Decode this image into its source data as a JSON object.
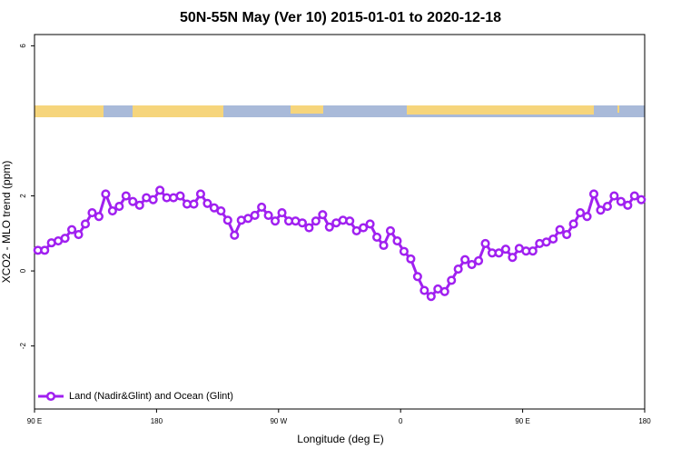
{
  "chart_data": {
    "type": "line",
    "title": "50N-55N May (Ver 10)   2015-01-01 to 2020-12-18",
    "xlabel": "Longitude (deg E)",
    "ylabel": "XCO2 - MLO trend (ppm)",
    "xlim": [
      90,
      540
    ],
    "ylim": [
      -3.68,
      6.3
    ],
    "xticks": [
      {
        "value": 90,
        "label": "90 E"
      },
      180,
      {
        "value": 270,
        "label": "90 W"
      },
      {
        "value": 360,
        "label": "0"
      },
      {
        "value": 450,
        "label": "90 E"
      },
      {
        "value": 540,
        "label": "180"
      }
    ],
    "yticks": [
      -2,
      0,
      2,
      6
    ],
    "legend": "bottom-left",
    "x": [
      92.5,
      97.5,
      102.5,
      107.5,
      112.5,
      117.5,
      122.5,
      127.5,
      132.5,
      137.5,
      142.5,
      147.5,
      152.5,
      157.5,
      162.5,
      167.5,
      172.5,
      177.5,
      182.5,
      187.5,
      192.5,
      197.5,
      202.5,
      207.5,
      212.5,
      217.5,
      222.5,
      227.5,
      232.5,
      237.5,
      242.5,
      247.5,
      252.5,
      257.5,
      262.5,
      267.5,
      272.5,
      277.5,
      282.5,
      287.5,
      292.5,
      297.5,
      302.5,
      307.5,
      312.5,
      317.5,
      322.5,
      327.5,
      332.5,
      337.5,
      342.5,
      347.5,
      352.5,
      357.5,
      362.5,
      367.5,
      372.5,
      377.5,
      382.5,
      387.5,
      392.5,
      397.5,
      402.5,
      407.5,
      412.5,
      417.5,
      422.5,
      427.5,
      432.5,
      437.5,
      442.5,
      447.5,
      452.5,
      457.5,
      462.5,
      467.5,
      472.5,
      477.5,
      482.5,
      487.5,
      492.5,
      497.5,
      502.5,
      507.5,
      512.5,
      517.5,
      522.5,
      527.5,
      532.5,
      537.5
    ],
    "series": [
      {
        "name": "Land (Nadir&Glint) and Ocean (Glint)",
        "color": "#a020f0",
        "values": [
          0.55,
          0.55,
          0.75,
          0.8,
          0.87,
          1.1,
          0.97,
          1.25,
          1.55,
          1.45,
          2.05,
          1.6,
          1.72,
          2.0,
          1.85,
          1.75,
          1.95,
          1.9,
          2.15,
          1.95,
          1.95,
          2.0,
          1.78,
          1.78,
          2.05,
          1.8,
          1.68,
          1.6,
          1.35,
          0.95,
          1.35,
          1.4,
          1.48,
          1.7,
          1.48,
          1.33,
          1.55,
          1.33,
          1.33,
          1.28,
          1.15,
          1.33,
          1.5,
          1.17,
          1.28,
          1.35,
          1.33,
          1.07,
          1.15,
          1.25,
          0.9,
          0.68,
          1.07,
          0.8,
          0.52,
          0.32,
          -0.15,
          -0.52,
          -0.68,
          -0.48,
          -0.55,
          -0.25,
          0.05,
          0.3,
          0.17,
          0.27,
          0.73,
          0.48,
          0.48,
          0.58,
          0.36,
          0.6,
          0.53,
          0.53,
          0.73,
          0.77,
          0.85,
          1.1,
          0.97,
          1.25,
          1.55,
          1.45,
          2.05,
          1.62,
          1.72,
          2.0,
          1.85,
          1.75,
          2.0,
          1.9
        ]
      }
    ]
  }
}
